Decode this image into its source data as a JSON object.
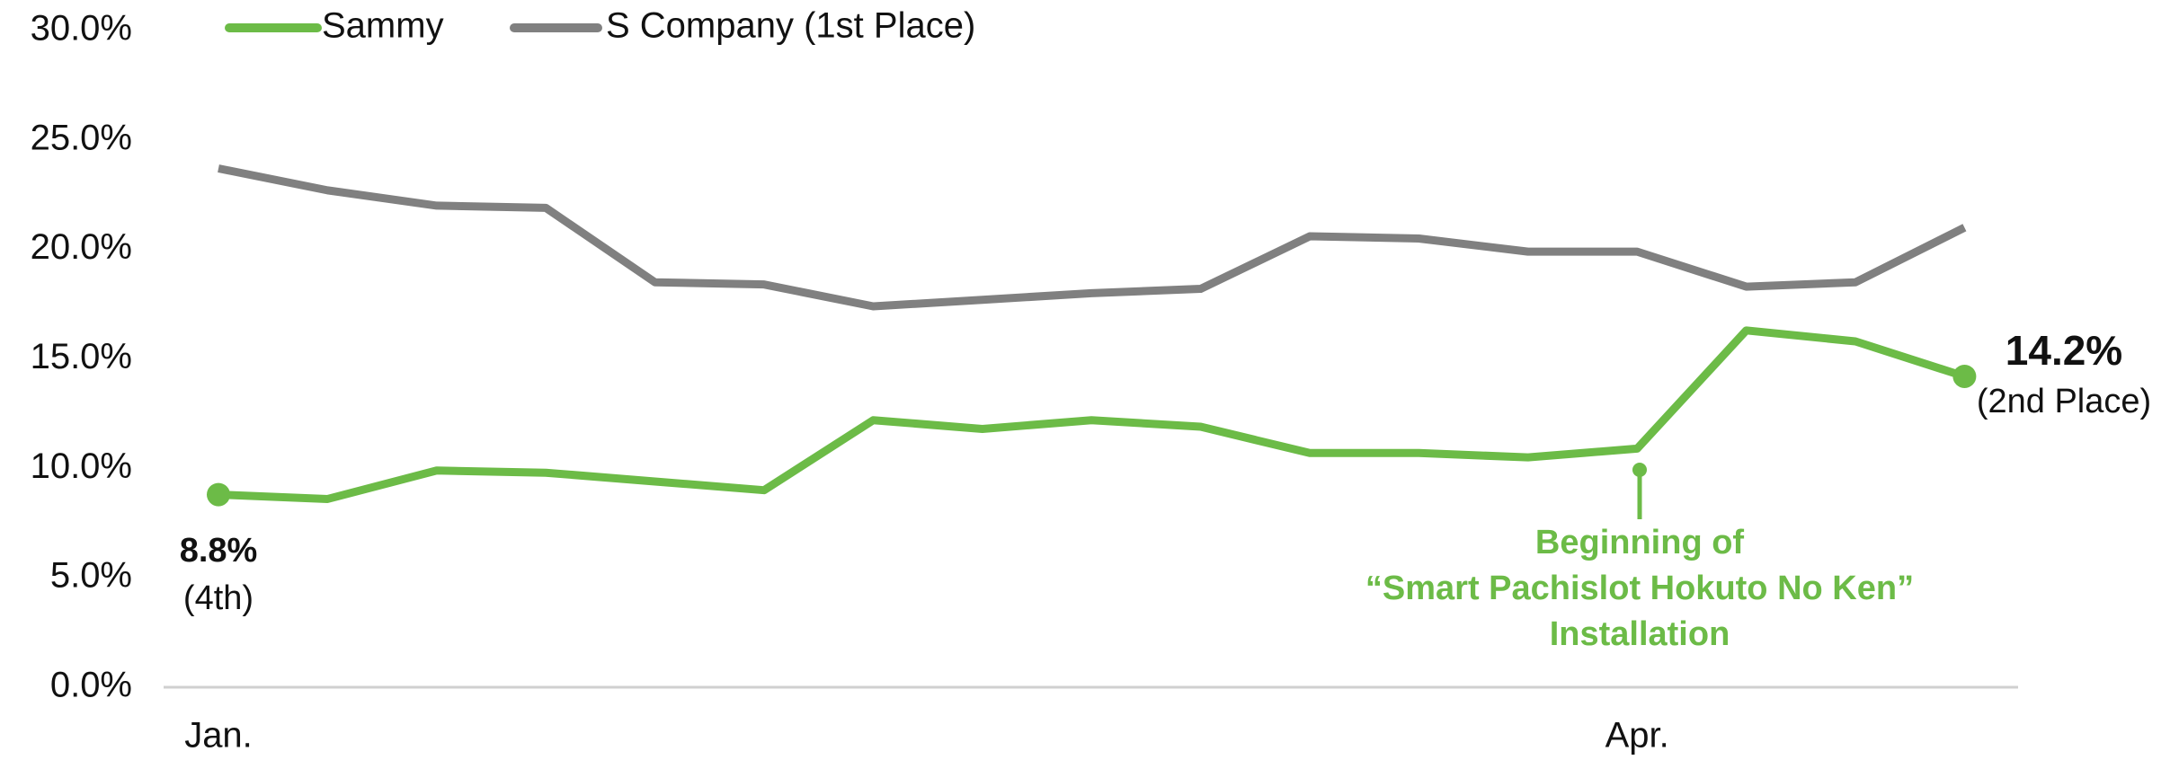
{
  "chart_data": {
    "type": "line",
    "categories": [
      "Jan.",
      null,
      null,
      null,
      null,
      null,
      null,
      null,
      null,
      null,
      null,
      null,
      null,
      "Apr.",
      null,
      null,
      null
    ],
    "series": [
      {
        "name": "Sammy",
        "color": "#6cbb47",
        "values": [
          8.8,
          8.6,
          9.9,
          9.8,
          9.4,
          9.0,
          12.2,
          11.8,
          12.2,
          11.9,
          10.7,
          10.7,
          10.5,
          10.9,
          16.3,
          15.8,
          14.2
        ],
        "value_labels": [
          "8.8%",
          null,
          null,
          null,
          null,
          null,
          null,
          null,
          null,
          null,
          null,
          null,
          null,
          null,
          null,
          null,
          "14.2%"
        ]
      },
      {
        "name": "S Company (1st Place)",
        "color": "#808080",
        "values": [
          23.7,
          22.7,
          22.0,
          21.9,
          18.5,
          18.4,
          17.4,
          17.7,
          18.0,
          18.2,
          20.6,
          20.5,
          19.9,
          19.9,
          18.3,
          18.5,
          21.0
        ]
      }
    ],
    "ylim": [
      0,
      30
    ],
    "yticks": [
      {
        "value": 0,
        "label": "0.0%"
      },
      {
        "value": 5,
        "label": "5.0%"
      },
      {
        "value": 10,
        "label": "10.0%"
      },
      {
        "value": 15,
        "label": "15.0%"
      },
      {
        "value": 20,
        "label": "20.0%"
      },
      {
        "value": 25,
        "label": "25.0%"
      },
      {
        "value": 30,
        "label": "30.0%"
      }
    ],
    "annotations": {
      "start_rank": "(4th)",
      "end_rank": "(2nd Place)",
      "installation": [
        "Beginning of",
        "“Smart Pachislot Hokuto No Ken”",
        "Installation"
      ]
    },
    "legend": "top-left"
  }
}
